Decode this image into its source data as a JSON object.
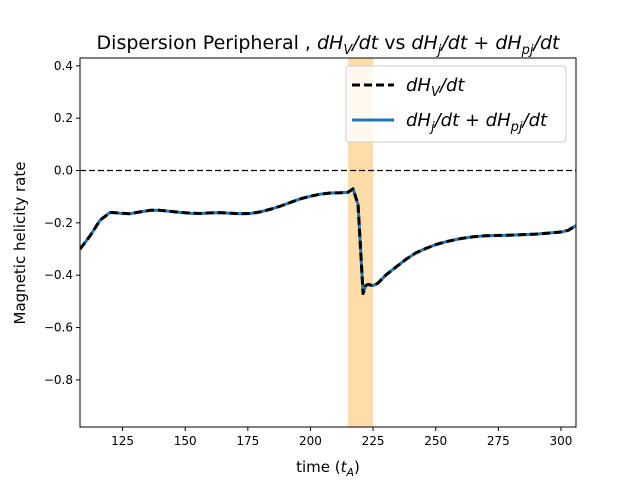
{
  "chart_data": {
    "type": "line",
    "title": "Dispersion Peripheral , dH_V/dt vs dH_j/dt + dH_pj/dt",
    "xlabel": "time (t_A)",
    "ylabel": "Magnetic helicity rate",
    "xlim": [
      108,
      306
    ],
    "ylim": [
      -0.98,
      0.43
    ],
    "xticks": [
      125,
      150,
      175,
      200,
      225,
      250,
      275,
      300
    ],
    "yticks": [
      0.4,
      0.2,
      0.0,
      -0.2,
      -0.4,
      -0.6,
      -0.8
    ],
    "xtick_labels": [
      "125",
      "150",
      "175",
      "200",
      "225",
      "250",
      "275",
      "300"
    ],
    "ytick_labels": [
      "0.4",
      "0.2",
      "0.0",
      "−0.2",
      "−0.4",
      "−0.6",
      "−0.8"
    ],
    "grid": false,
    "legend_position": "top-right",
    "hline": {
      "y": 0.0,
      "style": "dashed",
      "color": "#000000"
    },
    "highlight_span": {
      "x0": 215,
      "x1": 225,
      "color": "#ffdca8"
    },
    "x": [
      108,
      112,
      116,
      120,
      124,
      128,
      132,
      136,
      140,
      144,
      148,
      152,
      156,
      160,
      164,
      168,
      172,
      176,
      180,
      184,
      188,
      192,
      196,
      200,
      204,
      208,
      212,
      215,
      217,
      218,
      219,
      220,
      221,
      222,
      223,
      225,
      227,
      230,
      234,
      238,
      242,
      246,
      250,
      255,
      260,
      265,
      270,
      280,
      290,
      300,
      303,
      306
    ],
    "series": [
      {
        "name": "dH_V/dt",
        "color": "#000000",
        "style": "dashed",
        "width": 3,
        "values": [
          -0.3,
          -0.25,
          -0.19,
          -0.16,
          -0.163,
          -0.165,
          -0.158,
          -0.152,
          -0.152,
          -0.156,
          -0.16,
          -0.163,
          -0.164,
          -0.162,
          -0.161,
          -0.163,
          -0.165,
          -0.164,
          -0.158,
          -0.148,
          -0.136,
          -0.122,
          -0.108,
          -0.098,
          -0.09,
          -0.086,
          -0.085,
          -0.083,
          -0.07,
          -0.1,
          -0.13,
          -0.3,
          -0.47,
          -0.44,
          -0.435,
          -0.44,
          -0.43,
          -0.4,
          -0.37,
          -0.34,
          -0.315,
          -0.298,
          -0.283,
          -0.27,
          -0.26,
          -0.253,
          -0.249,
          -0.247,
          -0.243,
          -0.235,
          -0.228,
          -0.21
        ]
      },
      {
        "name": "dH_j/dt + dH_pj/dt",
        "color": "#1f77b4",
        "style": "solid",
        "width": 3,
        "values": [
          -0.3,
          -0.25,
          -0.19,
          -0.16,
          -0.163,
          -0.165,
          -0.158,
          -0.152,
          -0.152,
          -0.156,
          -0.16,
          -0.163,
          -0.164,
          -0.162,
          -0.161,
          -0.163,
          -0.165,
          -0.164,
          -0.158,
          -0.148,
          -0.136,
          -0.122,
          -0.108,
          -0.098,
          -0.09,
          -0.086,
          -0.085,
          -0.083,
          -0.07,
          -0.1,
          -0.13,
          -0.3,
          -0.47,
          -0.44,
          -0.435,
          -0.44,
          -0.43,
          -0.4,
          -0.37,
          -0.34,
          -0.315,
          -0.298,
          -0.283,
          -0.27,
          -0.26,
          -0.253,
          -0.249,
          -0.247,
          -0.243,
          -0.235,
          -0.228,
          -0.21
        ]
      }
    ]
  }
}
